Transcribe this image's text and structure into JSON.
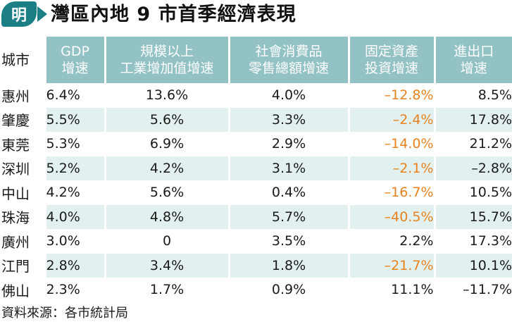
{
  "logo": {
    "char": "明"
  },
  "title": "灣區內地 9 市首季經濟表現",
  "colors": {
    "header_bg": "#93c2c4",
    "row_stripe": "#e2f1ef",
    "logo_bg": "#1d7f86",
    "negative_accent": "#e8821e"
  },
  "chart_data": {
    "type": "table",
    "columns": [
      {
        "key": "city",
        "lines": [
          "城市"
        ]
      },
      {
        "key": "gdp",
        "lines": [
          "GDP",
          "增速"
        ]
      },
      {
        "key": "industrial",
        "lines": [
          "規模以上",
          "工業增加值增速"
        ]
      },
      {
        "key": "retail",
        "lines": [
          "社會消費品",
          "零售總額增速"
        ]
      },
      {
        "key": "fixed",
        "lines": [
          "固定資產",
          "投資增速"
        ]
      },
      {
        "key": "trade",
        "lines": [
          "進出口",
          "增速"
        ]
      }
    ],
    "rows": [
      {
        "city": "惠州",
        "gdp": "6.4%",
        "industrial": "13.6%",
        "retail": "4.0%",
        "fixed": "–12.8%",
        "trade": "8.5%"
      },
      {
        "city": "肇慶",
        "gdp": "5.5%",
        "industrial": "5.6%",
        "retail": "3.3%",
        "fixed": "–2.4%",
        "trade": "17.8%"
      },
      {
        "city": "東莞",
        "gdp": "5.3%",
        "industrial": "6.9%",
        "retail": "2.9%",
        "fixed": "–14.0%",
        "trade": "21.2%"
      },
      {
        "city": "深圳",
        "gdp": "5.2%",
        "industrial": "4.2%",
        "retail": "3.1%",
        "fixed": "–2.1%",
        "trade": "–2.8%"
      },
      {
        "city": "中山",
        "gdp": "4.2%",
        "industrial": "5.6%",
        "retail": "0.4%",
        "fixed": "–16.7%",
        "trade": "10.5%"
      },
      {
        "city": "珠海",
        "gdp": "4.0%",
        "industrial": "4.8%",
        "retail": "5.7%",
        "fixed": "–40.5%",
        "trade": "15.7%"
      },
      {
        "city": "廣州",
        "gdp": "3.0%",
        "industrial": "0",
        "retail": "3.5%",
        "fixed": "2.2%",
        "trade": "17.3%"
      },
      {
        "city": "江門",
        "gdp": "2.8%",
        "industrial": "3.4%",
        "retail": "1.8%",
        "fixed": "–21.7%",
        "trade": "10.1%"
      },
      {
        "city": "佛山",
        "gdp": "2.3%",
        "industrial": "1.7%",
        "retail": "0.9%",
        "fixed": "11.1%",
        "trade": "–11.7%"
      }
    ],
    "highlighted_column": "fixed",
    "highlight_rule": "negative values in orange"
  },
  "source": "資料來源：各市統計局"
}
